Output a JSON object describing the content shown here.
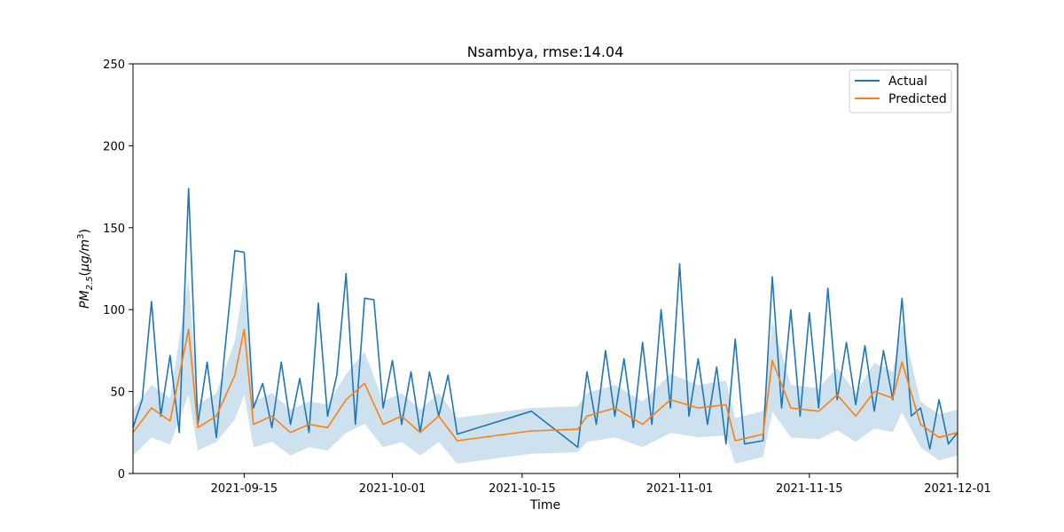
{
  "chart_data": {
    "type": "line",
    "title": "Nsambya, rmse:14.04",
    "xlabel": "Time",
    "ylabel_base": "PM",
    "ylabel_sub": "2.5",
    "ylabel_unit_open": "(",
    "ylabel_unit_mu": "μ",
    "ylabel_unit_g": "g/m",
    "ylabel_unit_sup": "3",
    "ylabel_unit_close": ")",
    "x_axis": {
      "type": "date",
      "range": [
        "2021-09-03",
        "2021-12-01"
      ],
      "ticks": [
        "2021-09-15",
        "2021-10-01",
        "2021-10-15",
        "2021-11-01",
        "2021-11-15",
        "2021-12-01"
      ]
    },
    "ylim": [
      0,
      250
    ],
    "y_ticks": [
      0,
      50,
      100,
      150,
      200,
      250
    ],
    "legend": {
      "position": "top-right"
    },
    "grid": false,
    "colors": {
      "actual": "#1f77b4",
      "predicted": "#ff7f0e",
      "band": "#1f77b4"
    },
    "series": [
      {
        "name": "Actual",
        "color": "#1f77b4",
        "points": [
          [
            "2021-09-03",
            28
          ],
          [
            "2021-09-04",
            45
          ],
          [
            "2021-09-05",
            105
          ],
          [
            "2021-09-06",
            35
          ],
          [
            "2021-09-07",
            72
          ],
          [
            "2021-09-08",
            25
          ],
          [
            "2021-09-09",
            174
          ],
          [
            "2021-09-10",
            30
          ],
          [
            "2021-09-11",
            68
          ],
          [
            "2021-09-12",
            22
          ],
          [
            "2021-09-13",
            80
          ],
          [
            "2021-09-14",
            136
          ],
          [
            "2021-09-15",
            135
          ],
          [
            "2021-09-16",
            40
          ],
          [
            "2021-09-17",
            55
          ],
          [
            "2021-09-18",
            28
          ],
          [
            "2021-09-19",
            68
          ],
          [
            "2021-09-20",
            30
          ],
          [
            "2021-09-21",
            58
          ],
          [
            "2021-09-22",
            25
          ],
          [
            "2021-09-23",
            104
          ],
          [
            "2021-09-24",
            35
          ],
          [
            "2021-09-25",
            60
          ],
          [
            "2021-09-26",
            122
          ],
          [
            "2021-09-27",
            30
          ],
          [
            "2021-09-28",
            107
          ],
          [
            "2021-09-29",
            106
          ],
          [
            "2021-09-30",
            40
          ],
          [
            "2021-10-01",
            69
          ],
          [
            "2021-10-02",
            30
          ],
          [
            "2021-10-03",
            62
          ],
          [
            "2021-10-04",
            25
          ],
          [
            "2021-10-05",
            62
          ],
          [
            "2021-10-06",
            35
          ],
          [
            "2021-10-07",
            60
          ],
          [
            "2021-10-08",
            24
          ],
          [
            "2021-10-16",
            38
          ],
          [
            "2021-10-21",
            16
          ],
          [
            "2021-10-22",
            62
          ],
          [
            "2021-10-23",
            30
          ],
          [
            "2021-10-24",
            75
          ],
          [
            "2021-10-25",
            35
          ],
          [
            "2021-10-26",
            70
          ],
          [
            "2021-10-27",
            28
          ],
          [
            "2021-10-28",
            80
          ],
          [
            "2021-10-29",
            30
          ],
          [
            "2021-10-30",
            100
          ],
          [
            "2021-10-31",
            40
          ],
          [
            "2021-11-01",
            128
          ],
          [
            "2021-11-02",
            35
          ],
          [
            "2021-11-03",
            70
          ],
          [
            "2021-11-04",
            30
          ],
          [
            "2021-11-05",
            65
          ],
          [
            "2021-11-06",
            18
          ],
          [
            "2021-11-07",
            82
          ],
          [
            "2021-11-08",
            18
          ],
          [
            "2021-11-10",
            20
          ],
          [
            "2021-11-11",
            120
          ],
          [
            "2021-11-12",
            40
          ],
          [
            "2021-11-13",
            100
          ],
          [
            "2021-11-14",
            35
          ],
          [
            "2021-11-15",
            98
          ],
          [
            "2021-11-16",
            40
          ],
          [
            "2021-11-17",
            113
          ],
          [
            "2021-11-18",
            45
          ],
          [
            "2021-11-19",
            80
          ],
          [
            "2021-11-20",
            42
          ],
          [
            "2021-11-21",
            78
          ],
          [
            "2021-11-22",
            38
          ],
          [
            "2021-11-23",
            75
          ],
          [
            "2021-11-24",
            45
          ],
          [
            "2021-11-25",
            107
          ],
          [
            "2021-11-26",
            35
          ],
          [
            "2021-11-27",
            40
          ],
          [
            "2021-11-28",
            15
          ],
          [
            "2021-11-29",
            45
          ],
          [
            "2021-11-30",
            18
          ],
          [
            "2021-12-01",
            25
          ]
        ]
      },
      {
        "name": "Predicted",
        "color": "#ff7f0e",
        "points": [
          [
            "2021-09-03",
            25
          ],
          [
            "2021-09-05",
            40
          ],
          [
            "2021-09-07",
            32
          ],
          [
            "2021-09-09",
            88
          ],
          [
            "2021-09-10",
            28
          ],
          [
            "2021-09-12",
            35
          ],
          [
            "2021-09-14",
            60
          ],
          [
            "2021-09-15",
            88
          ],
          [
            "2021-09-16",
            30
          ],
          [
            "2021-09-18",
            35
          ],
          [
            "2021-09-20",
            25
          ],
          [
            "2021-09-22",
            30
          ],
          [
            "2021-09-24",
            28
          ],
          [
            "2021-09-26",
            45
          ],
          [
            "2021-09-28",
            55
          ],
          [
            "2021-09-30",
            30
          ],
          [
            "2021-10-02",
            35
          ],
          [
            "2021-10-04",
            25
          ],
          [
            "2021-10-06",
            35
          ],
          [
            "2021-10-08",
            20
          ],
          [
            "2021-10-16",
            26
          ],
          [
            "2021-10-21",
            27
          ],
          [
            "2021-10-22",
            35
          ],
          [
            "2021-10-25",
            40
          ],
          [
            "2021-10-28",
            30
          ],
          [
            "2021-10-31",
            45
          ],
          [
            "2021-11-03",
            40
          ],
          [
            "2021-11-06",
            42
          ],
          [
            "2021-11-07",
            20
          ],
          [
            "2021-11-10",
            24
          ],
          [
            "2021-11-11",
            69
          ],
          [
            "2021-11-13",
            40
          ],
          [
            "2021-11-16",
            38
          ],
          [
            "2021-11-18",
            48
          ],
          [
            "2021-11-20",
            35
          ],
          [
            "2021-11-22",
            50
          ],
          [
            "2021-11-24",
            46
          ],
          [
            "2021-11-25",
            68
          ],
          [
            "2021-11-27",
            30
          ],
          [
            "2021-11-29",
            22
          ],
          [
            "2021-12-01",
            25
          ]
        ]
      }
    ]
  },
  "legend": {
    "actual_label": "Actual",
    "predicted_label": "Predicted"
  },
  "tick_labels": {
    "x": [
      "2021-09-15",
      "2021-10-01",
      "2021-10-15",
      "2021-11-01",
      "2021-11-15",
      "2021-12-01"
    ],
    "y": [
      "0",
      "50",
      "100",
      "150",
      "200",
      "250"
    ]
  }
}
